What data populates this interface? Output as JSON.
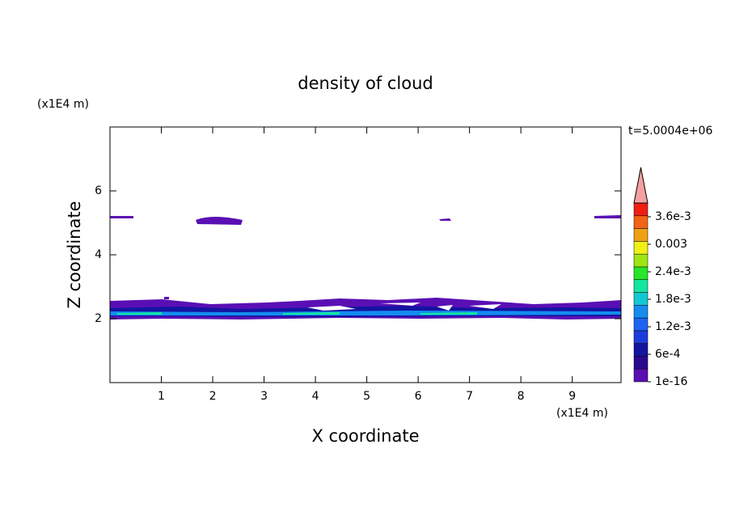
{
  "chart_data": {
    "type": "contour",
    "title": "density of cloud",
    "xlabel": "X coordinate",
    "ylabel": "Z coordinate",
    "x_unit": "(x1E4 m)",
    "y_unit": "(x1E4 m)",
    "time_label": "t=5.0004e+06",
    "xlim": [
      0,
      9.95
    ],
    "xticks": [
      1,
      2,
      3,
      4,
      5,
      6,
      7,
      8,
      9
    ],
    "ylim": [
      0,
      8
    ],
    "yticks": [
      2,
      4,
      6
    ],
    "colorbar": {
      "clim": [
        0,
        0.0039
      ],
      "ticks": [
        {
          "value": 1e-16,
          "label": "1e-16"
        },
        {
          "value": 0.0006,
          "label": "6e-4"
        },
        {
          "value": 0.0012,
          "label": "1.2e-3"
        },
        {
          "value": 0.0018,
          "label": "1.8e-3"
        },
        {
          "value": 0.0024,
          "label": "2.4e-3"
        },
        0.003,
        {
          "value": 0.0036,
          "label": "3.6e-3"
        }
      ],
      "colors": [
        "#5a0fb4",
        "#2a0a8c",
        "#1414a0",
        "#1e3cdc",
        "#1e64f0",
        "#148cf0",
        "#14c8d2",
        "#14e6a0",
        "#28e628",
        "#a0e614",
        "#f0f014",
        "#f0a014",
        "#f06414",
        "#f01e14"
      ],
      "extend_color": "#f4a0a0"
    }
  }
}
